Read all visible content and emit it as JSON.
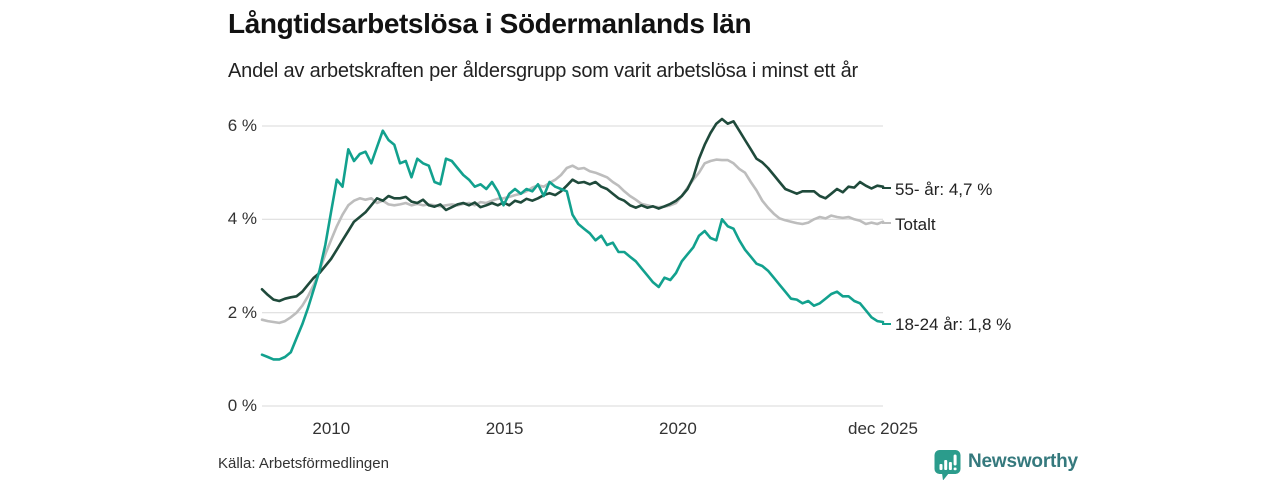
{
  "chart_data": {
    "type": "line",
    "title": "Långtidsarbetslösa i Södermanlands län",
    "subtitle": "Andel av arbetskraften per åldersgrupp som varit arbetslösa i minst ett år",
    "source": "Källa: Arbetsförmedlingen",
    "x_start": 2008,
    "x_end": 2025.9167,
    "x_resolution": "6 values per year (every 2 months), Jan 2008 - Dec 2025",
    "ylim": [
      0,
      6.5
    ],
    "grid": "horizontal",
    "legend_position": "right-end-labels",
    "y_ticks": [
      {
        "value": 6,
        "label": "6 %"
      },
      {
        "value": 4,
        "label": "4 %"
      },
      {
        "value": 2,
        "label": "2 %"
      },
      {
        "value": 0,
        "label": "0 %"
      }
    ],
    "x_ticks": [
      {
        "year": 2010,
        "label": "2010"
      },
      {
        "year": 2015,
        "label": "2015"
      },
      {
        "year": 2020,
        "label": "2020"
      },
      {
        "year": 2025.9167,
        "label": "dec 2025"
      }
    ],
    "series": [
      {
        "name": "55- år",
        "label": "55- år: 4,7 %",
        "end_value_pct": 4.7,
        "color": "#1f4a3b",
        "values": [
          2.5,
          2.38,
          2.28,
          2.25,
          2.3,
          2.33,
          2.35,
          2.45,
          2.6,
          2.75,
          2.85,
          3.0,
          3.15,
          3.35,
          3.55,
          3.75,
          3.95,
          4.05,
          4.15,
          4.3,
          4.45,
          4.4,
          4.5,
          4.45,
          4.45,
          4.48,
          4.38,
          4.35,
          4.42,
          4.3,
          4.27,
          4.32,
          4.2,
          4.26,
          4.32,
          4.35,
          4.3,
          4.36,
          4.26,
          4.3,
          4.35,
          4.3,
          4.36,
          4.3,
          4.4,
          4.36,
          4.44,
          4.4,
          4.45,
          4.52,
          4.56,
          4.52,
          4.6,
          4.72,
          4.85,
          4.78,
          4.8,
          4.75,
          4.8,
          4.7,
          4.65,
          4.55,
          4.45,
          4.4,
          4.3,
          4.25,
          4.3,
          4.25,
          4.28,
          4.23,
          4.28,
          4.33,
          4.4,
          4.5,
          4.65,
          4.9,
          5.3,
          5.6,
          5.85,
          6.05,
          6.15,
          6.05,
          6.1,
          5.9,
          5.7,
          5.5,
          5.3,
          5.22,
          5.1,
          4.95,
          4.8,
          4.65,
          4.6,
          4.55,
          4.6,
          4.6,
          4.6,
          4.5,
          4.45,
          4.55,
          4.65,
          4.58,
          4.7,
          4.68,
          4.8,
          4.72,
          4.66,
          4.72,
          4.7
        ]
      },
      {
        "name": "Totalt",
        "label": "Totalt",
        "end_value_pct": 3.95,
        "color": "#bdbdbd",
        "values": [
          1.85,
          1.82,
          1.8,
          1.78,
          1.82,
          1.9,
          2.0,
          2.15,
          2.35,
          2.6,
          2.9,
          3.25,
          3.55,
          3.85,
          4.1,
          4.3,
          4.4,
          4.45,
          4.42,
          4.45,
          4.35,
          4.4,
          4.32,
          4.3,
          4.32,
          4.35,
          4.3,
          4.33,
          4.3,
          4.32,
          4.3,
          4.28,
          4.3,
          4.32,
          4.3,
          4.33,
          4.35,
          4.3,
          4.37,
          4.35,
          4.4,
          4.44,
          4.45,
          4.48,
          4.52,
          4.55,
          4.6,
          4.68,
          4.73,
          4.7,
          4.78,
          4.85,
          4.95,
          5.1,
          5.15,
          5.08,
          5.1,
          5.03,
          5.0,
          4.95,
          4.9,
          4.8,
          4.72,
          4.6,
          4.5,
          4.42,
          4.33,
          4.3,
          4.27,
          4.26,
          4.27,
          4.3,
          4.35,
          4.5,
          4.68,
          4.85,
          5.0,
          5.2,
          5.25,
          5.28,
          5.27,
          5.27,
          5.2,
          5.08,
          5.0,
          4.8,
          4.62,
          4.4,
          4.25,
          4.12,
          4.02,
          3.98,
          3.95,
          3.92,
          3.9,
          3.93,
          4.0,
          4.05,
          4.02,
          4.08,
          4.05,
          4.03,
          4.05,
          4.0,
          3.97,
          3.9,
          3.93,
          3.9,
          3.95
        ]
      },
      {
        "name": "18-24 år",
        "label": "18-24 år: 1,8 %",
        "end_value_pct": 1.8,
        "color": "#12a18e",
        "values": [
          1.1,
          1.05,
          1.0,
          1.0,
          1.05,
          1.15,
          1.45,
          1.75,
          2.1,
          2.5,
          2.9,
          3.45,
          4.15,
          4.85,
          4.7,
          5.5,
          5.25,
          5.4,
          5.45,
          5.2,
          5.55,
          5.9,
          5.7,
          5.6,
          5.2,
          5.25,
          4.9,
          5.3,
          5.2,
          5.15,
          4.8,
          4.75,
          5.3,
          5.25,
          5.1,
          4.95,
          4.85,
          4.7,
          4.75,
          4.65,
          4.8,
          4.6,
          4.3,
          4.55,
          4.65,
          4.55,
          4.65,
          4.6,
          4.75,
          4.5,
          4.8,
          4.7,
          4.65,
          4.6,
          4.1,
          3.9,
          3.8,
          3.7,
          3.55,
          3.65,
          3.45,
          3.5,
          3.3,
          3.3,
          3.2,
          3.1,
          2.95,
          2.8,
          2.65,
          2.55,
          2.75,
          2.7,
          2.85,
          3.1,
          3.25,
          3.4,
          3.65,
          3.75,
          3.6,
          3.55,
          4.0,
          3.85,
          3.8,
          3.55,
          3.35,
          3.2,
          3.05,
          3.0,
          2.9,
          2.75,
          2.6,
          2.45,
          2.3,
          2.28,
          2.2,
          2.25,
          2.15,
          2.2,
          2.3,
          2.4,
          2.45,
          2.35,
          2.35,
          2.25,
          2.2,
          2.05,
          1.9,
          1.82,
          1.8
        ]
      }
    ]
  },
  "branding": {
    "name": "Newsworthy",
    "icon": "bar-chart-speech-bubble-icon",
    "icon_color": "#2b9c8c",
    "text_color": "#35797d"
  },
  "colors": {
    "background": "#ffffff",
    "grid": "#d9d9d9",
    "title_text": "#121212",
    "axis_text": "#333333"
  }
}
